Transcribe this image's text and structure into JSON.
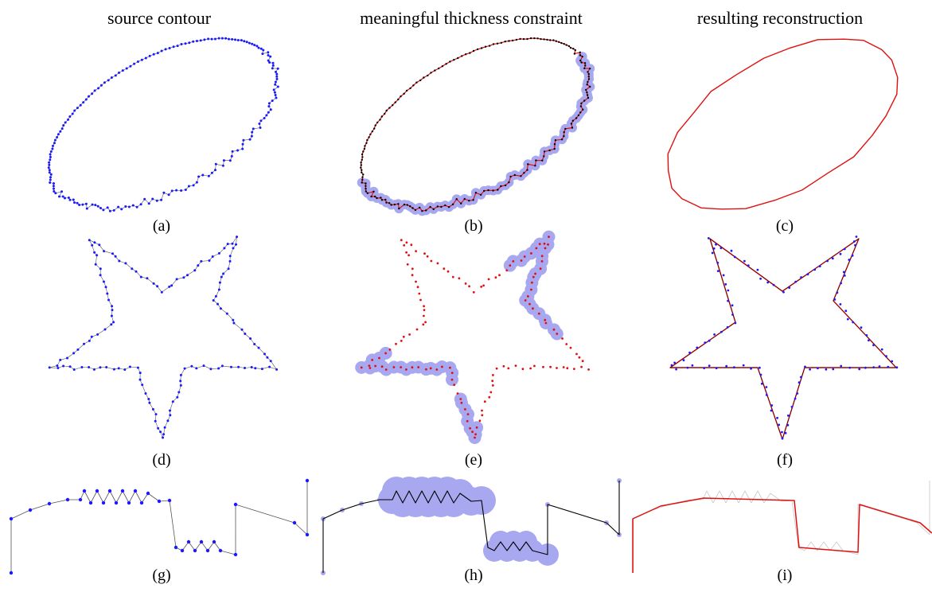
{
  "titles": {
    "left": "source contour",
    "middle": "meaningful thickness constraint",
    "right": "resulting reconstruction"
  },
  "captions": {
    "a": "(a)",
    "b": "(b)",
    "c": "(c)",
    "d": "(d)",
    "e": "(e)",
    "f": "(f)",
    "g": "(g)",
    "h": "(h)",
    "i": "(i)"
  },
  "colors": {
    "points": "#1a1aff",
    "reconstruction": "#e01010",
    "thickness": "#a8a8f0",
    "polyline": "#000000",
    "source_line": "#888888"
  }
}
